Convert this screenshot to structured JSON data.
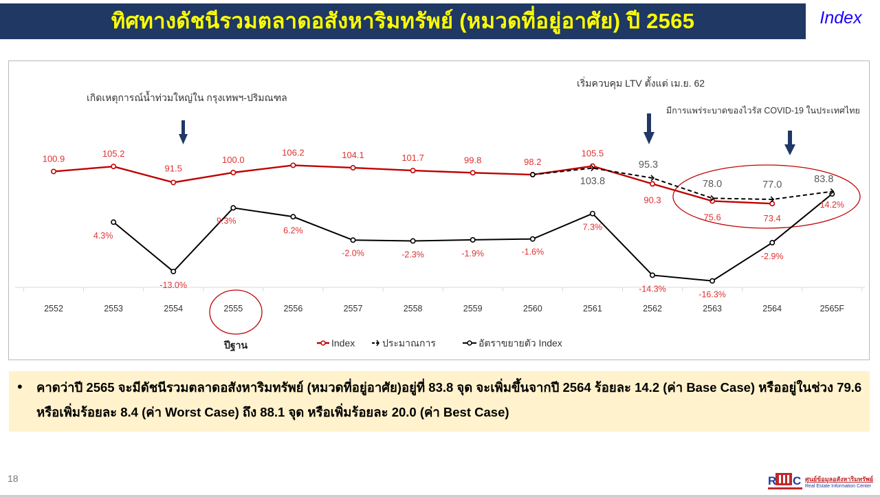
{
  "header": {
    "title": "ทิศทางดัชนีรวมตลาดอสังหาริมทรัพย์ (หมวดที่อยู่อาศัย) ปี 2565",
    "tag": "Index"
  },
  "annotations": {
    "flood": "เกิดเหตุการณ์น้ำท่วมใหญ่ใน กรุงเทพฯ-ปริมณฑล",
    "ltv": "เริ่มควบคุม LTV ตั้งแต่ เม.ย. 62",
    "covid": "มีการแพร่ระบาดของไวรัส COVID-19 ในประเทศไทย",
    "base_year": "ปีฐาน"
  },
  "note": {
    "bullet": "•",
    "text": "คาดว่าปี 2565 จะมีดัชนีรวมตลาดอสังหาริมทรัพย์ (หมวดที่อยู่อาศัย)อยู่ที่  83.8 จุด จะเพิ่มขึ้นจากปี 2564 ร้อยละ 14.2 (ค่า Base Case) หรืออยู่ในช่วง 79.6 หรือเพิ่มร้อยละ 8.4 (ค่า Worst Case)  ถึง 88.1 จุด หรือเพิ่มร้อยละ 20.0 (ค่า Best Case)"
  },
  "footer": {
    "page_number": "18",
    "logo_letters_left": "R",
    "logo_letters_right": "C",
    "logo_thai": "ศูนย์ข้อมูลอสังหาริมทรัพย์",
    "logo_english": "Real Estate Information Center"
  },
  "colors": {
    "header_bg": "#1f3864",
    "header_text": "#ffff00",
    "tag_text": "#1a00ff",
    "index_line": "#c00000",
    "estimate_line": "#000000",
    "growth_line": "#000000",
    "label_red": "#e03030",
    "label_gray": "#595959",
    "arrow": "#1f3864",
    "note_bg": "#fff2cc"
  },
  "chart_data": {
    "type": "line",
    "title": "ทิศทางดัชนีรวมตลาดอสังหาริมทรัพย์ (หมวดที่อยู่อาศัย) ปี 2565",
    "xlabel": "",
    "ylabel": "",
    "categories": [
      "2552",
      "2553",
      "2554",
      "2555",
      "2556",
      "2557",
      "2558",
      "2559",
      "2560",
      "2561",
      "2562",
      "2563",
      "2564",
      "2565F"
    ],
    "series": [
      {
        "name": "Index",
        "style": "solid-red",
        "values": [
          100.9,
          105.2,
          91.5,
          100.0,
          106.2,
          104.1,
          101.7,
          99.8,
          98.2,
          105.5,
          90.3,
          75.6,
          73.4,
          null
        ],
        "labels": [
          "100.9",
          "105.2",
          "91.5",
          "100.0",
          "106.2",
          "104.1",
          "101.7",
          "99.8",
          "98.2",
          "105.5",
          "90.3",
          "75.6",
          "73.4",
          ""
        ]
      },
      {
        "name": "ประมาณการ",
        "style": "dashed-black",
        "values": [
          null,
          null,
          null,
          null,
          null,
          null,
          null,
          null,
          98.2,
          103.8,
          95.3,
          78.0,
          77.0,
          83.8
        ],
        "labels": [
          "",
          "",
          "",
          "",
          "",
          "",
          "",
          "",
          "",
          "103.8",
          "95.3",
          "78.0",
          "77.0",
          "83.8"
        ]
      },
      {
        "name": "อัตราขยายตัว Index",
        "style": "solid-black",
        "unit": "%",
        "values": [
          null,
          4.3,
          -13.0,
          9.3,
          6.2,
          -2.0,
          -2.3,
          -1.9,
          -1.6,
          7.3,
          -14.3,
          -16.3,
          -2.9,
          14.2
        ],
        "labels": [
          "",
          "4.3%",
          "-13.0%",
          "9.3%",
          "6.2%",
          "-2.0%",
          "-2.3%",
          "-1.9%",
          "-1.6%",
          "7.3%",
          "-14.3%",
          "-16.3%",
          "-2.9%",
          "14.2%"
        ]
      }
    ],
    "legend": [
      "Index",
      "ประมาณการ",
      "อัตราขยายตัว Index"
    ],
    "legend_position": "bottom",
    "grid": false,
    "highlights": [
      "circle around 2555 (ปีฐาน)",
      "ellipse around 2563-2565F"
    ],
    "event_markers": [
      {
        "year": "2554",
        "text": "เกิดเหตุการณ์น้ำท่วมใหญ่ใน กรุงเทพฯ-ปริมณฑล"
      },
      {
        "year": "2562",
        "text": "เริ่มควบคุม LTV ตั้งแต่ เม.ย. 62"
      },
      {
        "year": "2564",
        "text": "มีการแพร่ระบาดของไวรัส COVID-19 ในประเทศไทย"
      }
    ]
  }
}
